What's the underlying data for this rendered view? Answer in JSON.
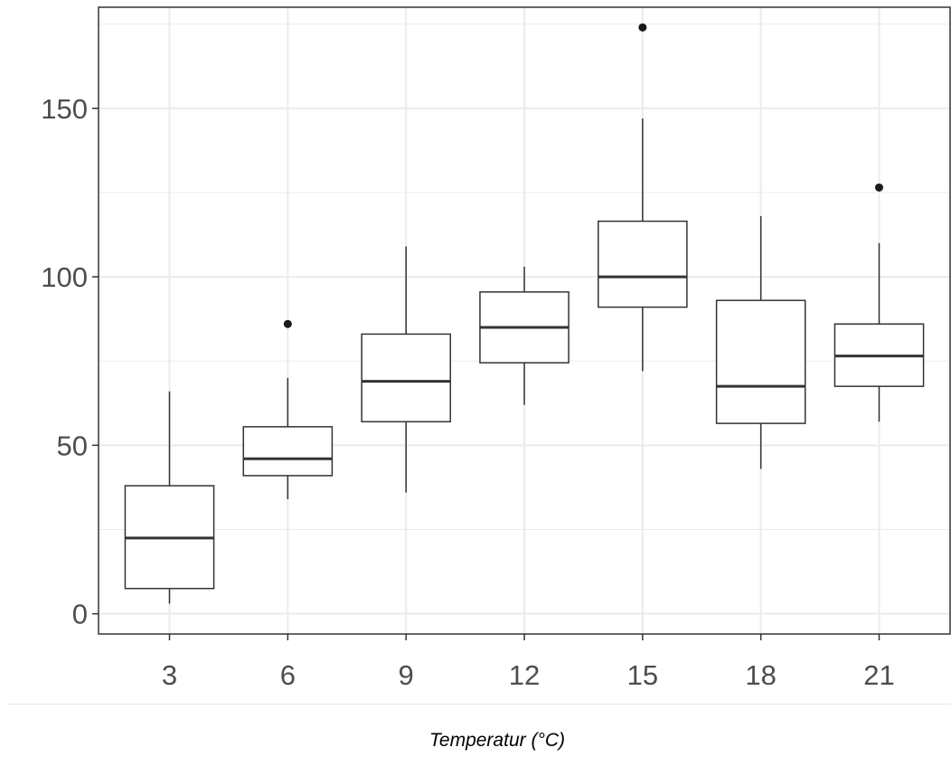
{
  "chart_data": {
    "type": "box",
    "title": "",
    "xlabel": "Temperatur (°C)",
    "ylabel": "",
    "ylim": [
      -6,
      180
    ],
    "yticks": [
      0,
      50,
      100,
      150
    ],
    "y_minor_ticks": [
      25,
      75,
      125,
      175
    ],
    "grid": true,
    "legend": "none",
    "colors": {
      "box_fill": "#ffffff",
      "box_stroke": "#333333",
      "grid": "#ebebeb",
      "axis": "#333333",
      "outlier": "#1a1a1a"
    },
    "categories": [
      "3",
      "6",
      "9",
      "12",
      "15",
      "18",
      "21"
    ],
    "boxes": [
      {
        "x": "3",
        "whisker_low": 3,
        "q1": 7.5,
        "median": 22.5,
        "q3": 38,
        "whisker_high": 66,
        "outliers": []
      },
      {
        "x": "6",
        "whisker_low": 34,
        "q1": 41,
        "median": 46,
        "q3": 55.5,
        "whisker_high": 70,
        "outliers": [
          86
        ]
      },
      {
        "x": "9",
        "whisker_low": 36,
        "q1": 57,
        "median": 69,
        "q3": 83,
        "whisker_high": 109,
        "outliers": []
      },
      {
        "x": "12",
        "whisker_low": 62,
        "q1": 74.5,
        "median": 85,
        "q3": 95.5,
        "whisker_high": 103,
        "outliers": []
      },
      {
        "x": "15",
        "whisker_low": 72,
        "q1": 91,
        "median": 100,
        "q3": 116.5,
        "whisker_high": 147,
        "outliers": [
          174
        ]
      },
      {
        "x": "18",
        "whisker_low": 43,
        "q1": 56.5,
        "median": 67.5,
        "q3": 93,
        "whisker_high": 118,
        "outliers": []
      },
      {
        "x": "21",
        "whisker_low": 57,
        "q1": 67.5,
        "median": 76.5,
        "q3": 86,
        "whisker_high": 110,
        "outliers": [
          126.5
        ]
      }
    ]
  }
}
